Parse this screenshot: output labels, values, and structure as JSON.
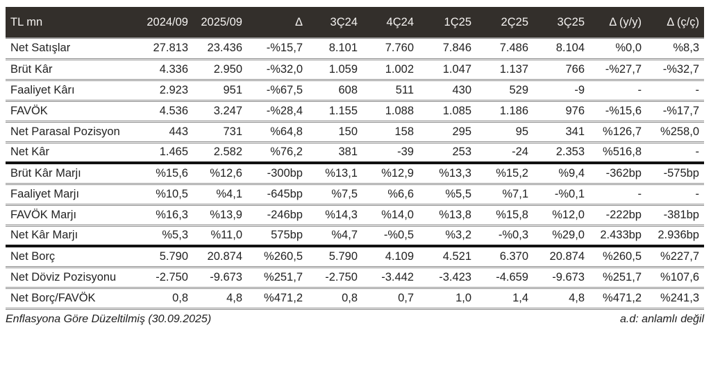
{
  "colors": {
    "header_bg": "#332F2B",
    "header_text": "#F5F3F1",
    "body_text": "#222222",
    "row_divider": "#8A8A8A",
    "section_divider": "#121212"
  },
  "chart_data": {
    "type": "table",
    "unit_label": "TL mn",
    "columns": [
      "2024/09",
      "2025/09",
      "Δ",
      "3Ç24",
      "4Ç24",
      "1Ç25",
      "2Ç25",
      "3Ç25",
      "Δ (y/y)",
      "Δ (ç/ç)"
    ],
    "sections": [
      {
        "name": "results",
        "rows": [
          {
            "label": "Net Satışlar",
            "values": [
              "27.813",
              "23.436",
              "-%15,7",
              "8.101",
              "7.760",
              "7.846",
              "7.486",
              "8.104",
              "%0,0",
              "%8,3"
            ]
          },
          {
            "label": "Brüt Kâr",
            "values": [
              "4.336",
              "2.950",
              "-%32,0",
              "1.059",
              "1.002",
              "1.047",
              "1.137",
              "766",
              "-%27,7",
              "-%32,7"
            ]
          },
          {
            "label": "Faaliyet Kârı",
            "values": [
              "2.923",
              "951",
              "-%67,5",
              "608",
              "511",
              "430",
              "529",
              "-9",
              "-",
              "-"
            ]
          },
          {
            "label": "FAVÖK",
            "values": [
              "4.536",
              "3.247",
              "-%28,4",
              "1.155",
              "1.088",
              "1.085",
              "1.186",
              "976",
              "-%15,6",
              "-%17,7"
            ]
          },
          {
            "label": "Net Parasal Pozisyon",
            "values": [
              "443",
              "731",
              "%64,8",
              "150",
              "158",
              "295",
              "95",
              "341",
              "%126,7",
              "%258,0"
            ]
          },
          {
            "label": "Net Kâr",
            "values": [
              "1.465",
              "2.582",
              "%76,2",
              "381",
              "-39",
              "253",
              "-24",
              "2.353",
              "%516,8",
              "-"
            ]
          }
        ]
      },
      {
        "name": "margins",
        "rows": [
          {
            "label": "Brüt Kâr Marjı",
            "values": [
              "%15,6",
              "%12,6",
              "-300bp",
              "%13,1",
              "%12,9",
              "%13,3",
              "%15,2",
              "%9,4",
              "-362bp",
              "-575bp"
            ]
          },
          {
            "label": "Faaliyet Marjı",
            "values": [
              "%10,5",
              "%4,1",
              "-645bp",
              "%7,5",
              "%6,6",
              "%5,5",
              "%7,1",
              "-%0,1",
              "-",
              "-"
            ]
          },
          {
            "label": "FAVÖK Marjı",
            "values": [
              "%16,3",
              "%13,9",
              "-246bp",
              "%14,3",
              "%14,0",
              "%13,8",
              "%15,8",
              "%12,0",
              "-222bp",
              "-381bp"
            ]
          },
          {
            "label": "Net Kâr Marjı",
            "values": [
              "%5,3",
              "%11,0",
              "575bp",
              "%4,7",
              "-%0,5",
              "%3,2",
              "-%0,3",
              "%29,0",
              "2.433bp",
              "2.936bp"
            ]
          }
        ]
      },
      {
        "name": "debt",
        "rows": [
          {
            "label": "Net Borç",
            "values": [
              "5.790",
              "20.874",
              "%260,5",
              "5.790",
              "4.109",
              "4.521",
              "6.370",
              "20.874",
              "%260,5",
              "%227,7"
            ]
          },
          {
            "label": "Net Döviz Pozisyonu",
            "values": [
              "-2.750",
              "-9.673",
              "%251,7",
              "-2.750",
              "-3.442",
              "-3.423",
              "-4.659",
              "-9.673",
              "%251,7",
              "%107,6"
            ]
          },
          {
            "label": "Net Borç/FAVÖK",
            "values": [
              "0,8",
              "4,8",
              "%471,2",
              "0,8",
              "0,7",
              "1,0",
              "1,4",
              "4,8",
              "%471,2",
              "%241,3"
            ]
          }
        ]
      }
    ],
    "footnote_left": "Enflasyona Göre Düzeltilmiş (30.09.2025)",
    "footnote_right": "a.d: anlamlı değil"
  }
}
